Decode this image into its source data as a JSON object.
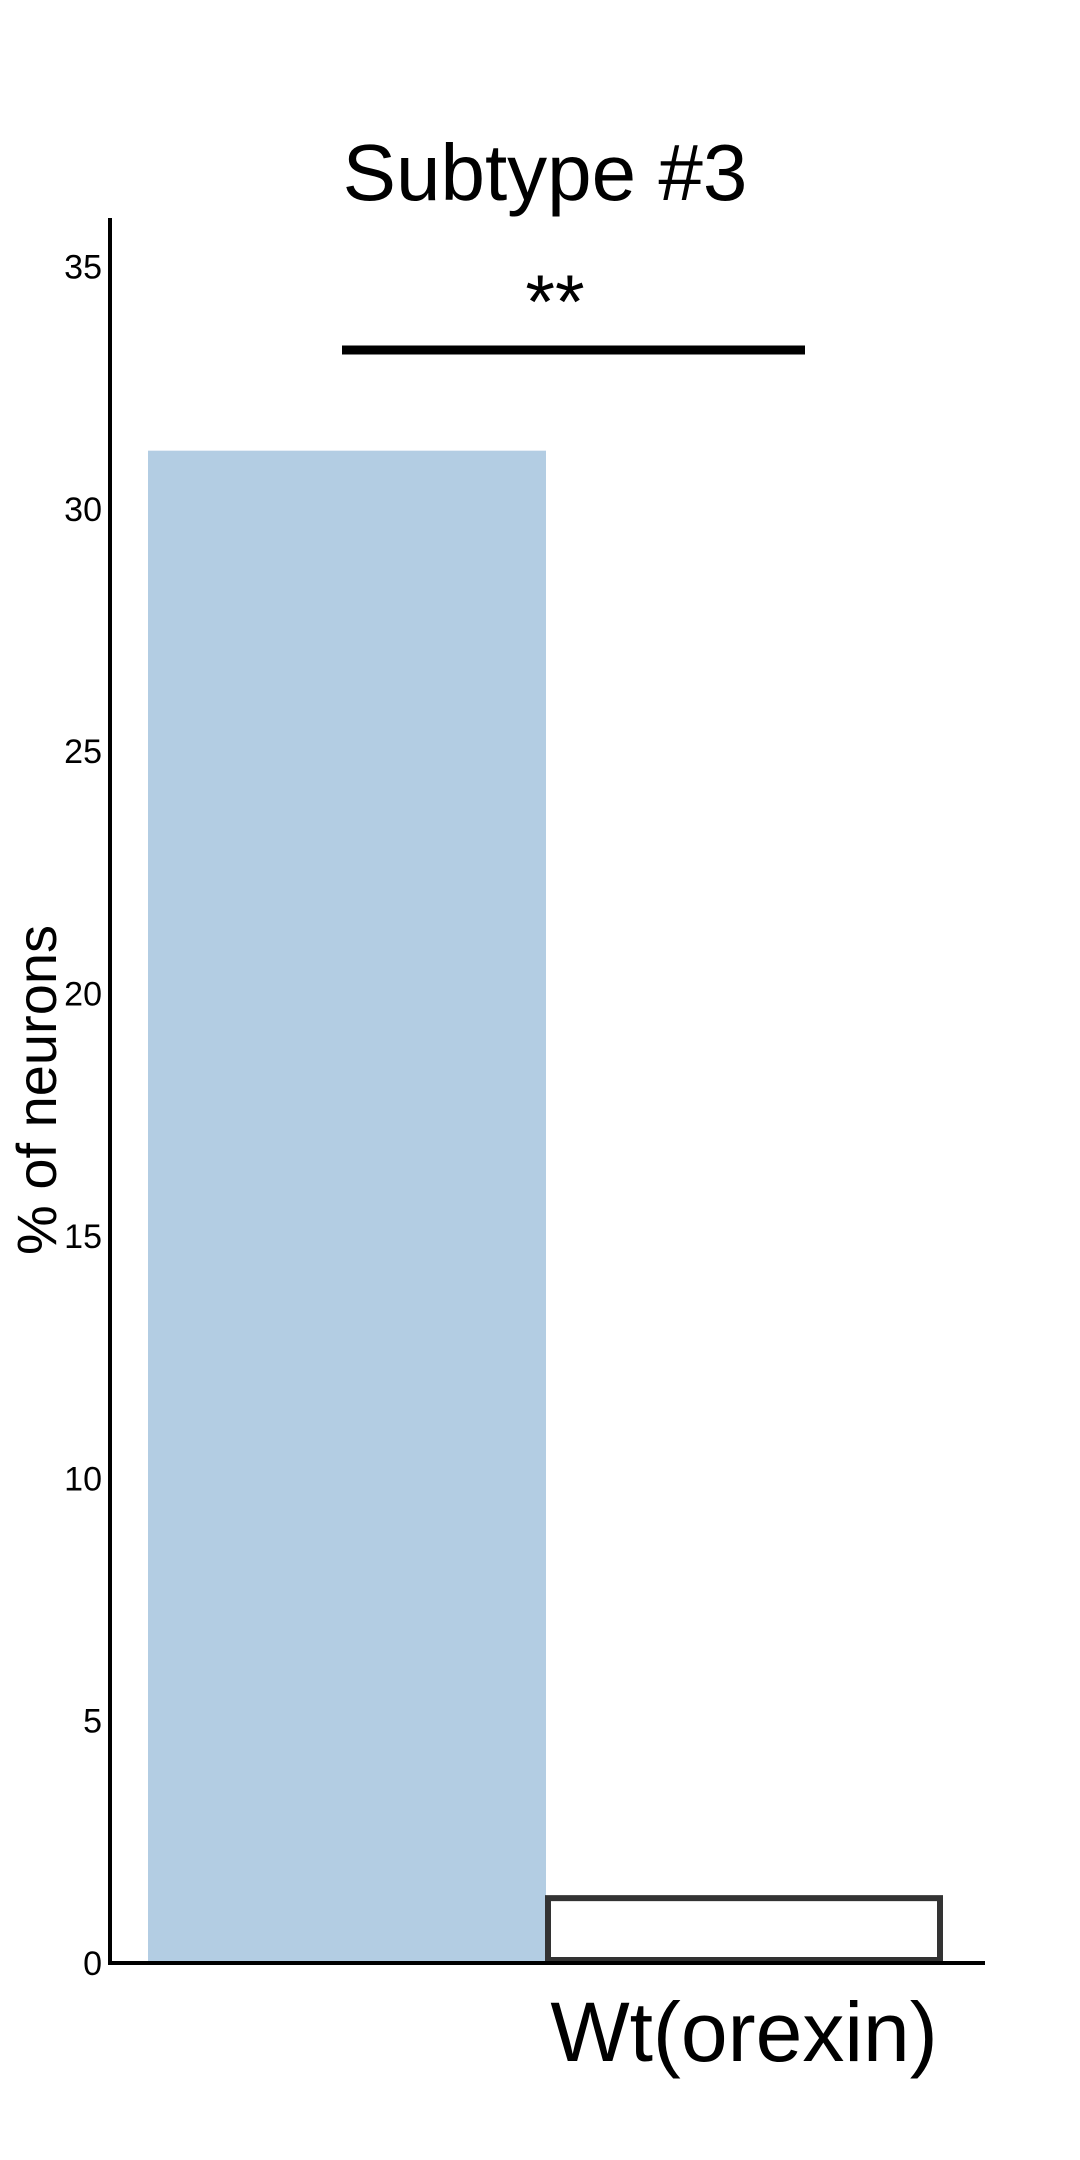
{
  "chart_data": {
    "type": "bar",
    "title": "Subtype #3",
    "xlabel": "",
    "ylabel": "% of neurons",
    "ylim": [
      0,
      36
    ],
    "yticks": [
      0,
      5,
      10,
      15,
      20,
      25,
      30,
      35
    ],
    "categories": [
      "",
      "Wt(orexin)"
    ],
    "values": [
      31.2,
      1.4
    ],
    "bar_styles": [
      {
        "fill": "#b3cde3",
        "stroke": "none"
      },
      {
        "fill": "#ffffff",
        "stroke": "#333333"
      }
    ],
    "significance": {
      "label": "**",
      "from_category": 0,
      "to_category": 1
    },
    "grid": false
  }
}
